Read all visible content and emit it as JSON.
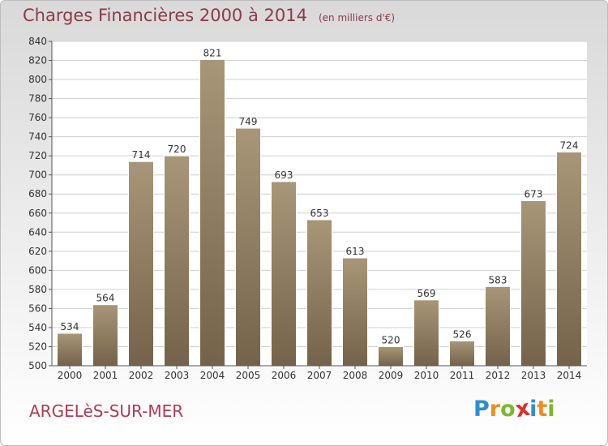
{
  "header": {
    "title": "Charges Financières 2000 à 2014",
    "subtitle": "(en milliers d'€)"
  },
  "footer": {
    "city": "ARGELèS-SUR-MER"
  },
  "logo": {
    "text": "Proxiti",
    "letters": [
      {
        "char": "P",
        "color": "#2e8fd0"
      },
      {
        "char": "r",
        "color": "#f28c1e"
      },
      {
        "char": "o",
        "color": "#7cb82f"
      },
      {
        "char": "x",
        "color": "#e02b2b"
      },
      {
        "char": "i",
        "color": "#2e8fd0"
      },
      {
        "char": "t",
        "color": "#f28c1e"
      },
      {
        "char": "i",
        "color": "#7cb82f"
      }
    ]
  },
  "colors": {
    "bar_top": "#a89678",
    "bar_bottom": "#74634a",
    "title": "#8e3a43",
    "grid": "#cfcfcf"
  },
  "chart_data": {
    "type": "bar",
    "categories": [
      "2000",
      "2001",
      "2002",
      "2003",
      "2004",
      "2005",
      "2006",
      "2007",
      "2008",
      "2009",
      "2010",
      "2011",
      "2012",
      "2013",
      "2014"
    ],
    "values": [
      534,
      564,
      714,
      720,
      821,
      749,
      693,
      653,
      613,
      520,
      569,
      526,
      583,
      673,
      724
    ],
    "ylim": [
      500,
      840
    ],
    "yticks": [
      500,
      520,
      540,
      560,
      580,
      600,
      620,
      640,
      660,
      680,
      700,
      720,
      740,
      760,
      780,
      800,
      820,
      840
    ],
    "grid": true,
    "legend": "none"
  }
}
